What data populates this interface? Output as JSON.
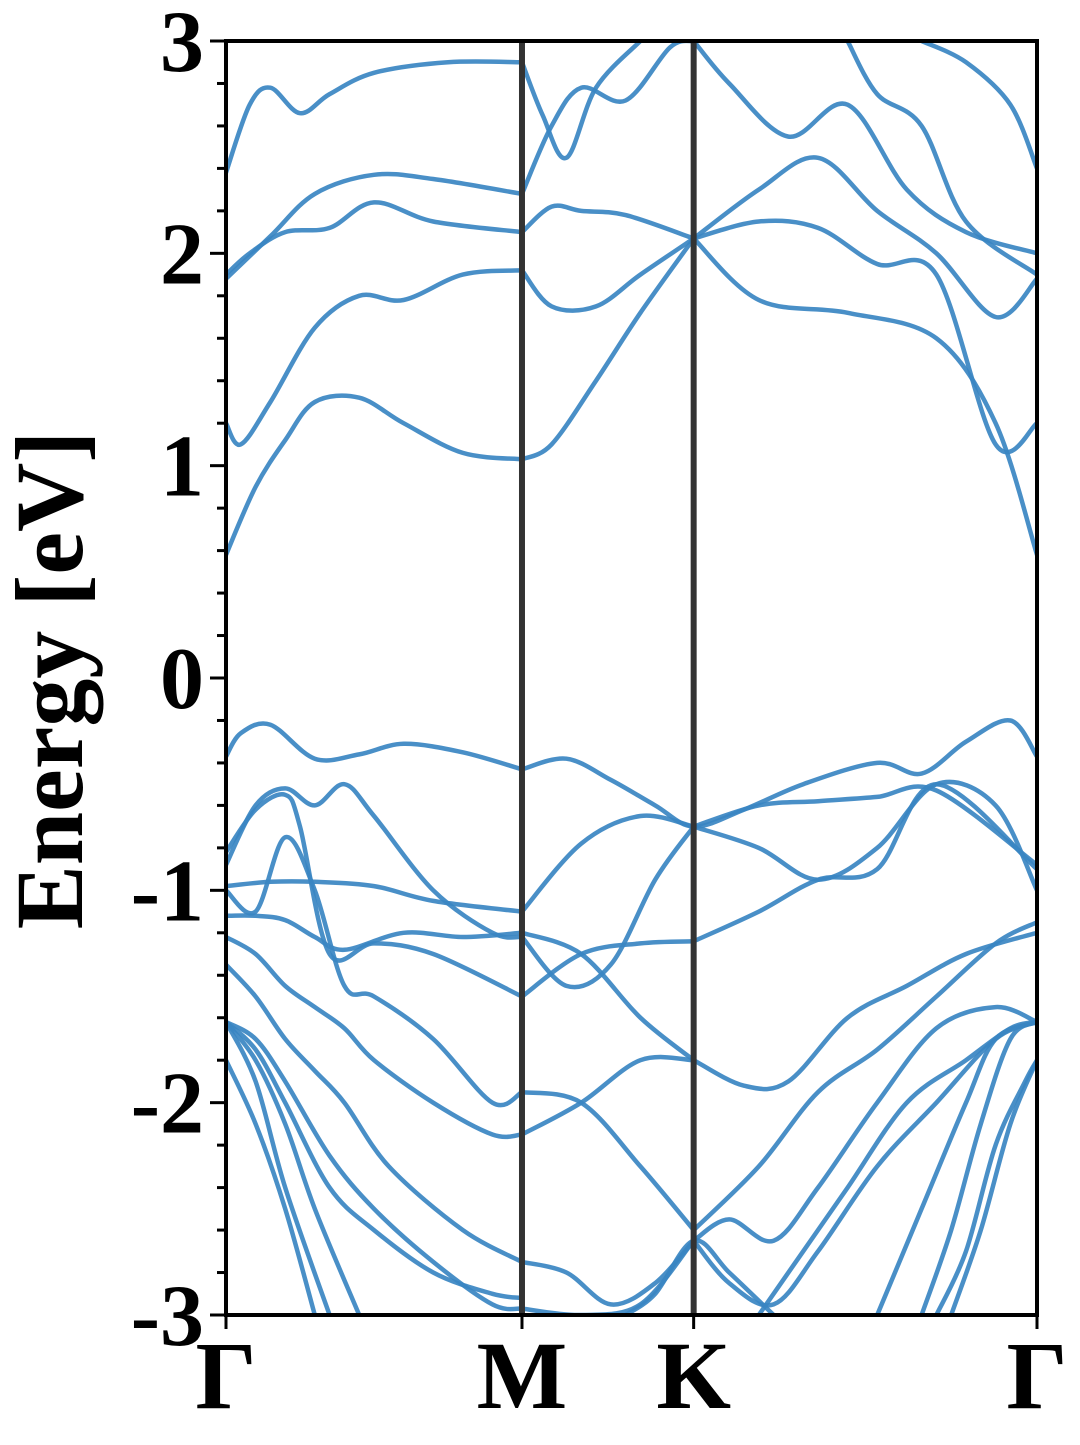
{
  "chart_data": {
    "type": "line",
    "title": "",
    "xlabel": "",
    "ylabel": "Energy [eV]",
    "ylim": [
      -3,
      3
    ],
    "y_ticks": [
      3,
      2,
      1,
      0,
      -1,
      -2,
      -3
    ],
    "y_tick_labels": [
      "3",
      "2",
      "1",
      "0",
      "-1",
      "-2",
      "-3"
    ],
    "x_ticks": [
      0,
      1.0,
      1.58,
      2.74
    ],
    "x_tick_labels": [
      "Γ",
      "M",
      "K",
      "Γ"
    ],
    "xlim": [
      0,
      2.74
    ],
    "grid": false,
    "line_color": "#3a86c2",
    "kpoint_line_color": "#333333",
    "series": [
      {
        "x": [
          0,
          0.05,
          0.15,
          0.3,
          0.45,
          0.6,
          0.8,
          1.0
        ],
        "y": [
          -0.37,
          -0.26,
          -0.22,
          -0.38,
          -0.36,
          -0.31,
          -0.35,
          -0.43
        ]
      },
      {
        "x": [
          1.0,
          1.15,
          1.3,
          1.45,
          1.58,
          1.75,
          1.95,
          2.2,
          2.35,
          2.5,
          2.65,
          2.74
        ],
        "y": [
          -0.43,
          -0.38,
          -0.48,
          -0.6,
          -0.7,
          -0.62,
          -0.5,
          -0.4,
          -0.45,
          -0.3,
          -0.2,
          -0.37
        ]
      },
      {
        "x": [
          0,
          0.1,
          0.2,
          0.3,
          0.45,
          0.6,
          0.8,
          1.0
        ],
        "y": [
          0.58,
          0.9,
          1.12,
          1.3,
          1.32,
          1.2,
          1.06,
          1.03
        ]
      },
      {
        "x": [
          1.0,
          1.1,
          1.25,
          1.4,
          1.58
        ],
        "y": [
          1.03,
          1.1,
          1.4,
          1.72,
          2.07
        ]
      },
      {
        "x": [
          1.58,
          1.8,
          2.1,
          2.4,
          2.6,
          2.74
        ],
        "y": [
          2.07,
          1.78,
          1.72,
          1.6,
          1.2,
          0.58
        ]
      },
      {
        "x": [
          0,
          0.05,
          0.15,
          0.3,
          0.45,
          0.6,
          0.8,
          1.0
        ],
        "y": [
          1.2,
          1.1,
          1.3,
          1.65,
          1.8,
          1.78,
          1.9,
          1.92
        ]
      },
      {
        "x": [
          1.0,
          1.1,
          1.25,
          1.4,
          1.58
        ],
        "y": [
          1.92,
          1.75,
          1.75,
          1.9,
          2.07
        ]
      },
      {
        "x": [
          1.58,
          1.8,
          2.0,
          2.2,
          2.4,
          2.6,
          2.74
        ],
        "y": [
          2.07,
          2.15,
          2.12,
          1.95,
          1.9,
          1.1,
          1.2
        ]
      },
      {
        "x": [
          0,
          0.08,
          0.2,
          0.35,
          0.5,
          0.7,
          1.0
        ],
        "y": [
          1.9,
          2.0,
          2.1,
          2.12,
          2.24,
          2.15,
          2.1
        ]
      },
      {
        "x": [
          1.0,
          1.1,
          1.2,
          1.35,
          1.58
        ],
        "y": [
          2.1,
          2.22,
          2.2,
          2.18,
          2.07
        ]
      },
      {
        "x": [
          0,
          0.15,
          0.3,
          0.5,
          0.7,
          1.0
        ],
        "y": [
          1.88,
          2.08,
          2.28,
          2.37,
          2.35,
          2.28
        ]
      },
      {
        "x": [
          0,
          0.08,
          0.15,
          0.25,
          0.35,
          0.5,
          0.75,
          1.0
        ],
        "y": [
          2.38,
          2.7,
          2.78,
          2.66,
          2.75,
          2.85,
          2.9,
          2.9
        ]
      },
      {
        "x": [
          1.0,
          1.07,
          1.15,
          1.25,
          1.4
        ],
        "y": [
          2.9,
          2.65,
          2.45,
          2.78,
          3.0
        ]
      },
      {
        "x": [
          1.0,
          1.1,
          1.2,
          1.35,
          1.5,
          1.58
        ],
        "y": [
          2.28,
          2.6,
          2.78,
          2.72,
          2.97,
          3.0
        ]
      },
      {
        "x": [
          1.58,
          1.8,
          2.0,
          2.2,
          2.4,
          2.6,
          2.74
        ],
        "y": [
          2.07,
          2.3,
          2.45,
          2.2,
          2.0,
          1.7,
          1.88
        ]
      },
      {
        "x": [
          1.58,
          1.7,
          1.9,
          2.1,
          2.3,
          2.5,
          2.74
        ],
        "y": [
          3.0,
          2.8,
          2.55,
          2.7,
          2.3,
          2.1,
          2.0
        ]
      },
      {
        "x": [
          2.1,
          2.2,
          2.35,
          2.5,
          2.74
        ],
        "y": [
          3.0,
          2.75,
          2.6,
          2.15,
          1.9
        ]
      },
      {
        "x": [
          2.35,
          2.5,
          2.65,
          2.74
        ],
        "y": [
          3.0,
          2.9,
          2.7,
          2.4
        ]
      },
      {
        "x": [
          0,
          0.15,
          0.3,
          0.5,
          0.7,
          1.0
        ],
        "y": [
          -0.98,
          -0.96,
          -0.96,
          -0.98,
          -1.05,
          -1.1
        ]
      },
      {
        "x": [
          1.0,
          1.2,
          1.4,
          1.58
        ],
        "y": [
          -1.1,
          -0.78,
          -0.65,
          -0.7
        ]
      },
      {
        "x": [
          1.58,
          1.8,
          2.0,
          2.2,
          2.4,
          2.74
        ],
        "y": [
          -0.7,
          -0.6,
          -0.58,
          -0.56,
          -0.53,
          -0.88
        ]
      },
      {
        "x": [
          0,
          0.1,
          0.2,
          0.3,
          0.4,
          0.5,
          0.7,
          0.9,
          1.0
        ],
        "y": [
          -0.88,
          -0.6,
          -0.52,
          -0.6,
          -0.5,
          -0.65,
          -1.0,
          -1.2,
          -1.22
        ]
      },
      {
        "x": [
          1.0,
          1.15,
          1.3,
          1.45,
          1.58
        ],
        "y": [
          -1.22,
          -1.45,
          -1.35,
          -0.95,
          -0.7
        ]
      },
      {
        "x": [
          1.58,
          1.8,
          2.0,
          2.2,
          2.4,
          2.6,
          2.74
        ],
        "y": [
          -0.7,
          -0.8,
          -0.95,
          -0.8,
          -0.5,
          -0.6,
          -1.0
        ]
      },
      {
        "x": [
          0,
          0.1,
          0.2,
          0.25,
          0.35,
          0.5,
          0.7,
          1.0
        ],
        "y": [
          -0.82,
          -0.62,
          -0.55,
          -0.7,
          -1.3,
          -1.25,
          -1.3,
          -1.5
        ]
      },
      {
        "x": [
          1.0,
          1.2,
          1.4,
          1.58
        ],
        "y": [
          -1.5,
          -1.3,
          -1.25,
          -1.24
        ]
      },
      {
        "x": [
          1.58,
          1.8,
          2.0,
          2.2,
          2.4,
          2.74
        ],
        "y": [
          -1.24,
          -1.1,
          -0.95,
          -0.9,
          -0.5,
          -0.9
        ]
      },
      {
        "x": [
          0,
          0.1,
          0.2,
          0.3,
          0.4,
          0.6,
          0.8,
          1.0
        ],
        "y": [
          -1.12,
          -1.12,
          -1.14,
          -1.22,
          -1.28,
          -1.2,
          -1.22,
          -1.2
        ]
      },
      {
        "x": [
          1.0,
          1.2,
          1.4,
          1.58
        ],
        "y": [
          -1.2,
          -1.3,
          -1.6,
          -1.8
        ]
      },
      {
        "x": [
          1.58,
          1.75,
          1.9,
          2.1,
          2.3,
          2.5,
          2.74
        ],
        "y": [
          -1.8,
          -1.92,
          -1.9,
          -1.6,
          -1.45,
          -1.3,
          -1.2
        ]
      },
      {
        "x": [
          0,
          0.1,
          0.2,
          0.3,
          0.4,
          0.5,
          0.7,
          0.9,
          1.0
        ],
        "y": [
          -1.0,
          -1.1,
          -0.75,
          -1.0,
          -1.45,
          -1.5,
          -1.7,
          -2.0,
          -1.95
        ]
      },
      {
        "x": [
          1.0,
          1.2,
          1.4,
          1.58
        ],
        "y": [
          -1.95,
          -2.0,
          -2.3,
          -2.6
        ]
      },
      {
        "x": [
          1.58,
          1.8,
          2.0,
          2.2,
          2.4,
          2.6,
          2.74
        ],
        "y": [
          -2.6,
          -2.3,
          -1.95,
          -1.75,
          -1.5,
          -1.25,
          -1.15
        ]
      },
      {
        "x": [
          0,
          0.1,
          0.2,
          0.3,
          0.4,
          0.5,
          0.7,
          0.9,
          1.0
        ],
        "y": [
          -1.22,
          -1.3,
          -1.45,
          -1.55,
          -1.65,
          -1.8,
          -2.0,
          -2.15,
          -2.15
        ]
      },
      {
        "x": [
          1.0,
          1.2,
          1.4,
          1.58
        ],
        "y": [
          -2.15,
          -2.0,
          -1.8,
          -1.8
        ]
      },
      {
        "x": [
          0,
          0.1,
          0.2,
          0.3,
          0.4,
          0.55,
          0.8,
          1.0
        ],
        "y": [
          -1.35,
          -1.5,
          -1.7,
          -1.85,
          -2.0,
          -2.3,
          -2.6,
          -2.75
        ]
      },
      {
        "x": [
          1.0,
          1.15,
          1.3,
          1.45,
          1.58
        ],
        "y": [
          -2.75,
          -2.8,
          -2.95,
          -2.85,
          -2.65
        ]
      },
      {
        "x": [
          1.58,
          1.7,
          1.85,
          2.0,
          2.2,
          2.4,
          2.6,
          2.74
        ],
        "y": [
          -2.65,
          -2.55,
          -2.65,
          -2.4,
          -2.0,
          -1.65,
          -1.55,
          -1.62
        ]
      },
      {
        "x": [
          0,
          0.1,
          0.2,
          0.35,
          0.5,
          0.7,
          0.9,
          1.0
        ],
        "y": [
          -1.62,
          -1.7,
          -1.9,
          -2.25,
          -2.5,
          -2.75,
          -2.95,
          -2.97
        ]
      },
      {
        "x": [
          1.0,
          1.2,
          1.4,
          1.58
        ],
        "y": [
          -2.97,
          -3.0,
          -2.95,
          -2.65
        ]
      },
      {
        "x": [
          1.58,
          1.7,
          1.85,
          2.0,
          2.2,
          2.4,
          2.6,
          2.74
        ],
        "y": [
          -2.65,
          -2.85,
          -2.95,
          -2.7,
          -2.3,
          -2.0,
          -1.7,
          -1.62
        ]
      },
      {
        "x": [
          0,
          0.1,
          0.2,
          0.35,
          0.5,
          0.7,
          0.9,
          1.0
        ],
        "y": [
          -1.62,
          -1.75,
          -2.0,
          -2.4,
          -2.6,
          -2.8,
          -2.9,
          -2.92
        ]
      },
      {
        "x": [
          0,
          0.1,
          0.2,
          0.35
        ],
        "y": [
          -1.62,
          -1.9,
          -2.4,
          -3.0
        ]
      },
      {
        "x": [
          0,
          0.1,
          0.2,
          0.3
        ],
        "y": [
          -1.8,
          -2.1,
          -2.5,
          -3.0
        ]
      },
      {
        "x": [
          0,
          0.1,
          0.2,
          0.3,
          0.45
        ],
        "y": [
          -1.62,
          -1.8,
          -2.1,
          -2.5,
          -3.0
        ]
      },
      {
        "x": [
          1.35,
          1.45,
          1.58,
          1.7,
          1.85
        ],
        "y": [
          -3.0,
          -2.9,
          -2.65,
          -2.8,
          -3.0
        ]
      },
      {
        "x": [
          1.8,
          1.95,
          2.1,
          2.3,
          2.5,
          2.65,
          2.74
        ],
        "y": [
          -3.0,
          -2.7,
          -2.4,
          -2.0,
          -1.8,
          -1.65,
          -1.62
        ]
      },
      {
        "x": [
          2.2,
          2.35,
          2.5,
          2.6,
          2.74
        ],
        "y": [
          -3.0,
          -2.5,
          -2.0,
          -1.7,
          -1.62
        ]
      },
      {
        "x": [
          2.35,
          2.45,
          2.55,
          2.65,
          2.74
        ],
        "y": [
          -3.0,
          -2.6,
          -2.1,
          -1.7,
          -1.62
        ]
      },
      {
        "x": [
          2.4,
          2.5,
          2.6,
          2.7,
          2.74
        ],
        "y": [
          -3.0,
          -2.7,
          -2.2,
          -1.9,
          -1.8
        ]
      },
      {
        "x": [
          2.45,
          2.55,
          2.65,
          2.74
        ],
        "y": [
          -3.0,
          -2.6,
          -2.1,
          -1.8
        ]
      }
    ]
  }
}
